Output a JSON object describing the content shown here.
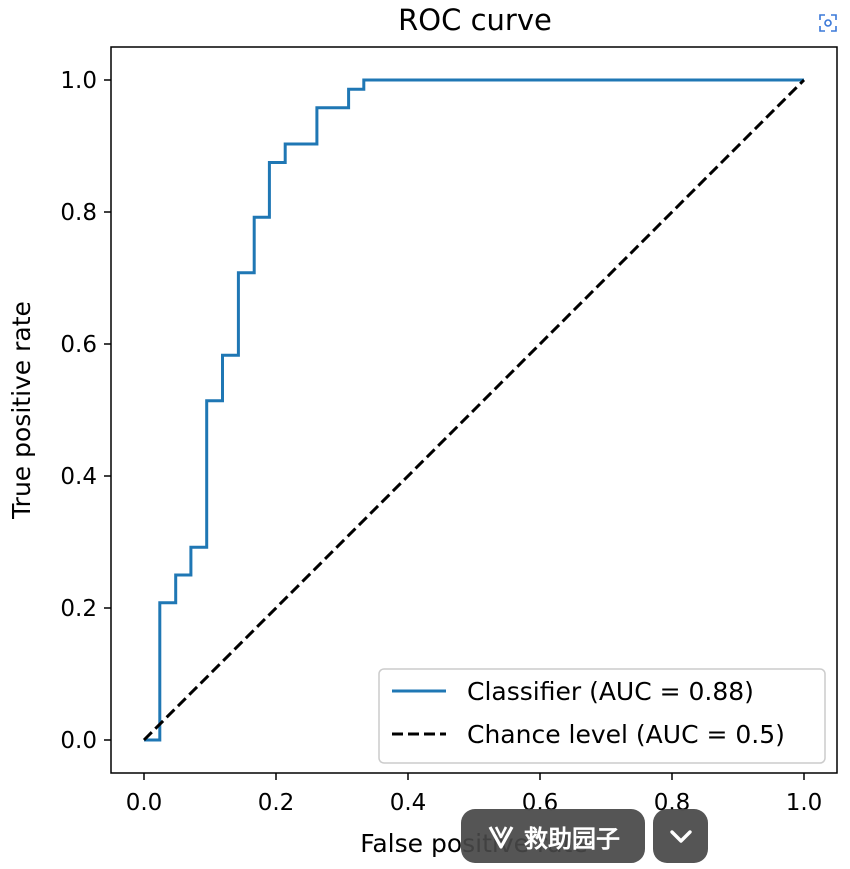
{
  "chart_data": {
    "type": "line",
    "title": "ROC curve",
    "xlabel": "False positive rate",
    "ylabel": "True positive rate",
    "xlim": [
      -0.05,
      1.05
    ],
    "ylim": [
      -0.05,
      1.05
    ],
    "xticks": [
      0.0,
      0.2,
      0.4,
      0.6,
      0.8,
      1.0
    ],
    "yticks": [
      0.0,
      0.2,
      0.4,
      0.6,
      0.8,
      1.0
    ],
    "xtick_labels": [
      "0.0",
      "0.2",
      "0.4",
      "0.6",
      "0.8",
      "1.0"
    ],
    "ytick_labels": [
      "0.0",
      "0.2",
      "0.4",
      "0.6",
      "0.8",
      "1.0"
    ],
    "grid": false,
    "legend_position": "bottom-right",
    "series": [
      {
        "name": "Classifier (AUC = 0.88)",
        "color": "#1f77b4",
        "style": "solid",
        "x": [
          0.0,
          0.024,
          0.024,
          0.048,
          0.048,
          0.071,
          0.071,
          0.095,
          0.095,
          0.119,
          0.119,
          0.143,
          0.143,
          0.167,
          0.167,
          0.19,
          0.19,
          0.214,
          0.214,
          0.262,
          0.262,
          0.31,
          0.31,
          0.333,
          0.333,
          1.0
        ],
        "y": [
          0.0,
          0.0,
          0.208,
          0.208,
          0.25,
          0.25,
          0.292,
          0.292,
          0.514,
          0.514,
          0.583,
          0.583,
          0.708,
          0.708,
          0.792,
          0.792,
          0.875,
          0.875,
          0.903,
          0.903,
          0.958,
          0.958,
          0.986,
          0.986,
          1.0,
          1.0
        ]
      },
      {
        "name": "Chance level (AUC = 0.5)",
        "color": "#000000",
        "style": "dashed",
        "x": [
          0.0,
          1.0
        ],
        "y": [
          0.0,
          1.0
        ]
      }
    ]
  },
  "overlay": {
    "app_label": "救助园子",
    "icons": {
      "app": "v-logo-icon",
      "expand": "chevron-down-icon",
      "scan": "scan-icon"
    }
  }
}
